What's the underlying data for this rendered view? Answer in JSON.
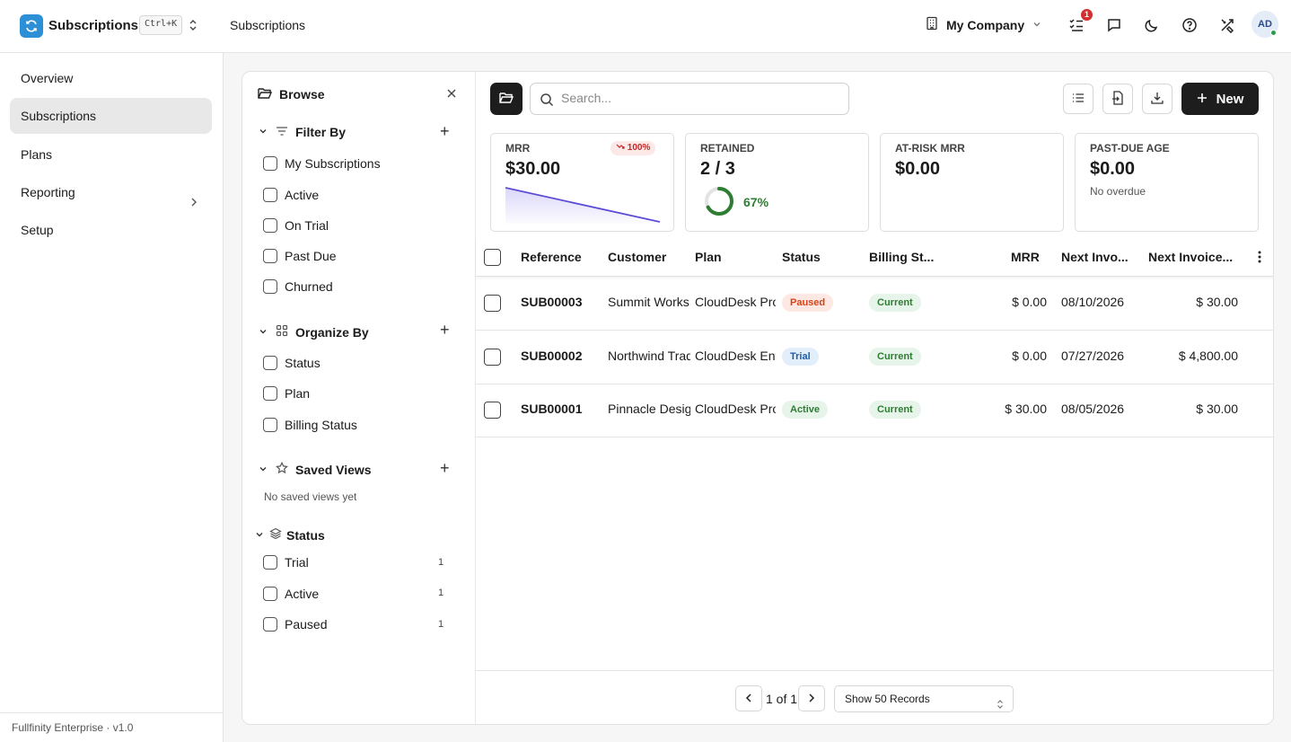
{
  "app": {
    "name": "Subscriptions",
    "shortcut": "Ctrl+K"
  },
  "header": {
    "breadcrumb": "Subscriptions",
    "company": "My Company",
    "notifications_count": "1",
    "avatar_initials": "AD"
  },
  "nav": {
    "items": [
      {
        "label": "Overview"
      },
      {
        "label": "Subscriptions"
      },
      {
        "label": "Plans"
      },
      {
        "label": "Reporting"
      },
      {
        "label": "Setup"
      }
    ],
    "footer": "Fullfinity Enterprise · v1.0"
  },
  "browse": {
    "title": "Browse",
    "filter_by": {
      "title": "Filter By",
      "items": [
        "My Subscriptions",
        "Active",
        "On Trial",
        "Past Due",
        "Churned"
      ]
    },
    "organize_by": {
      "title": "Organize By",
      "items": [
        "Status",
        "Plan",
        "Billing Status"
      ]
    },
    "saved_views": {
      "title": "Saved Views",
      "empty": "No saved views yet"
    },
    "status": {
      "title": "Status",
      "items": [
        {
          "label": "Trial",
          "count": "1"
        },
        {
          "label": "Active",
          "count": "1"
        },
        {
          "label": "Paused",
          "count": "1"
        }
      ]
    }
  },
  "toolbar": {
    "search_placeholder": "Search...",
    "new_label": "New"
  },
  "cards": {
    "mrr": {
      "label": "MRR",
      "value": "$30.00",
      "trend": "100%"
    },
    "retained": {
      "label": "RETAINED",
      "value": "2 / 3",
      "percent": "67%",
      "fraction": 0.67
    },
    "at_risk": {
      "label": "AT-RISK MRR",
      "value": "$0.00"
    },
    "past_due": {
      "label": "PAST-DUE AGE",
      "value": "$0.00",
      "sub": "No overdue"
    }
  },
  "table": {
    "columns": [
      "Reference",
      "Customer",
      "Plan",
      "Status",
      "Billing St...",
      "MRR",
      "Next Invo...",
      "Next Invoice..."
    ],
    "rows": [
      {
        "ref": "SUB00003",
        "customer": "Summit Works",
        "plan": "CloudDesk Pro",
        "status": "Paused",
        "billing": "Current",
        "mrr": "$ 0.00",
        "next_date": "08/10/2026",
        "next_amount": "$ 30.00"
      },
      {
        "ref": "SUB00002",
        "customer": "Northwind Trading",
        "plan": "CloudDesk Enterprise",
        "status": "Trial",
        "billing": "Current",
        "mrr": "$ 0.00",
        "next_date": "07/27/2026",
        "next_amount": "$ 4,800.00"
      },
      {
        "ref": "SUB00001",
        "customer": "Pinnacle Design",
        "plan": "CloudDesk Pro",
        "status": "Active",
        "billing": "Current",
        "mrr": "$ 30.00",
        "next_date": "08/05/2026",
        "next_amount": "$ 30.00"
      }
    ]
  },
  "pagination": {
    "text": "1 of 1",
    "page_size": "Show 50 Records"
  }
}
